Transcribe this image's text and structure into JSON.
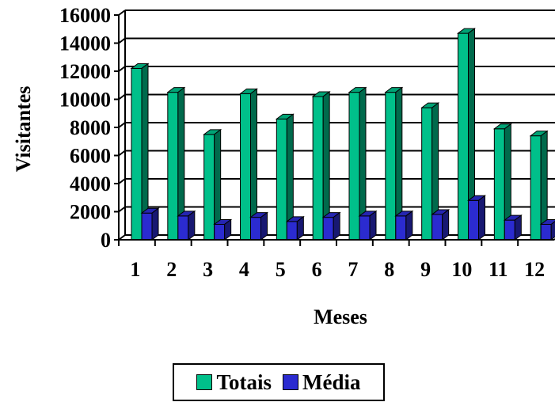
{
  "chart_data": {
    "type": "bar",
    "style": "3d-clustered-column",
    "xlabel": "Meses",
    "ylabel": "Visitantes",
    "categories": [
      "1",
      "2",
      "3",
      "4",
      "5",
      "6",
      "7",
      "8",
      "9",
      "10",
      "11",
      "12"
    ],
    "ylim": [
      0,
      16000
    ],
    "yticks": [
      "0",
      "2000",
      "4000",
      "6000",
      "8000",
      "10000",
      "12000",
      "14000",
      "16000"
    ],
    "grid": true,
    "legend_position": "bottom",
    "series": [
      {
        "name": "Totais",
        "color": "#00c08a",
        "values": [
          12200,
          10500,
          7500,
          10400,
          8600,
          10200,
          10500,
          10500,
          9400,
          14700,
          7900,
          7400
        ]
      },
      {
        "name": "Média",
        "color": "#2b2bd0",
        "values": [
          1900,
          1700,
          1100,
          1600,
          1300,
          1600,
          1700,
          1700,
          1800,
          2800,
          1400,
          1100
        ]
      }
    ]
  }
}
